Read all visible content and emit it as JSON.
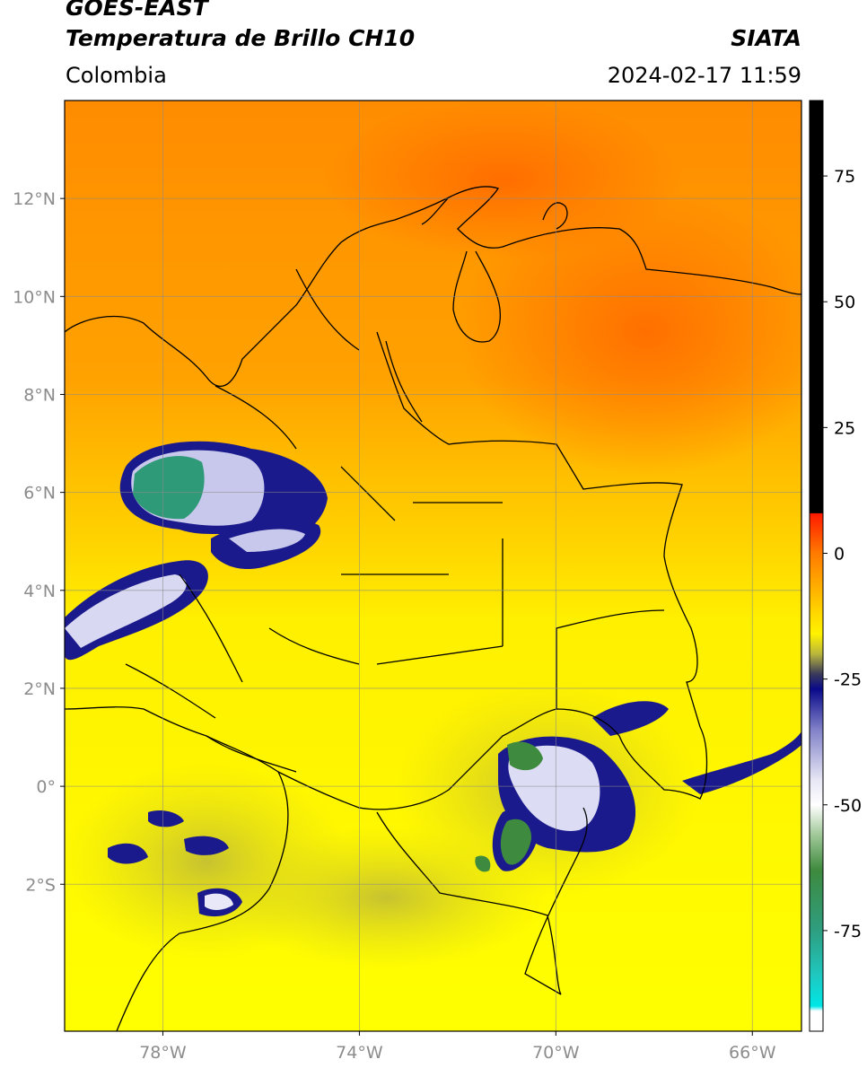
{
  "header": {
    "satellite": "GOES-EAST",
    "product": "Temperatura de Brillo CH10",
    "organization": "SIATA",
    "region": "Colombia",
    "timestamp": "2024-02-17 11:59"
  },
  "map": {
    "lon_range": [
      -80,
      -65
    ],
    "lat_range": [
      -5,
      14
    ],
    "lon_ticks": [
      {
        "value": -78,
        "label": "78°W"
      },
      {
        "value": -74,
        "label": "74°W"
      },
      {
        "value": -70,
        "label": "70°W"
      },
      {
        "value": -66,
        "label": "66°W"
      }
    ],
    "lat_ticks": [
      {
        "value": 12,
        "label": "12°N"
      },
      {
        "value": 10,
        "label": "10°N"
      },
      {
        "value": 8,
        "label": "8°N"
      },
      {
        "value": 6,
        "label": "6°N"
      },
      {
        "value": 4,
        "label": "4°N"
      },
      {
        "value": 2,
        "label": "2°N"
      },
      {
        "value": 0,
        "label": "0°"
      },
      {
        "value": -2,
        "label": "2°S"
      }
    ],
    "grid": true
  },
  "colorbar": {
    "range": [
      -95,
      90
    ],
    "ticks": [
      {
        "value": 75,
        "label": "75"
      },
      {
        "value": 50,
        "label": "50"
      },
      {
        "value": 25,
        "label": "25"
      },
      {
        "value": 0,
        "label": "0"
      },
      {
        "value": -25,
        "label": "-25"
      },
      {
        "value": -50,
        "label": "-50"
      },
      {
        "value": -75,
        "label": "-75"
      }
    ],
    "stops": [
      {
        "value": 90,
        "color": "#000000"
      },
      {
        "value": 8,
        "color": "#000000"
      },
      {
        "value": 7.9,
        "color": "#ff1a00"
      },
      {
        "value": 0,
        "color": "#ff7a00"
      },
      {
        "value": -12,
        "color": "#ffd800"
      },
      {
        "value": -16,
        "color": "#fff200"
      },
      {
        "value": -20,
        "color": "#b9b63c"
      },
      {
        "value": -24,
        "color": "#3a3a5a"
      },
      {
        "value": -27,
        "color": "#0a0a8a"
      },
      {
        "value": -35,
        "color": "#8080c8"
      },
      {
        "value": -45,
        "color": "#e6e6f5"
      },
      {
        "value": -50,
        "color": "#ffffff"
      },
      {
        "value": -56,
        "color": "#a0c898"
      },
      {
        "value": -63,
        "color": "#3e8a3e"
      },
      {
        "value": -75,
        "color": "#2e9e80"
      },
      {
        "value": -84,
        "color": "#1fc8c0"
      },
      {
        "value": -90,
        "color": "#00e6e6"
      },
      {
        "value": -91,
        "color": "#ffffff"
      },
      {
        "value": -95,
        "color": "#ffffff"
      }
    ]
  }
}
